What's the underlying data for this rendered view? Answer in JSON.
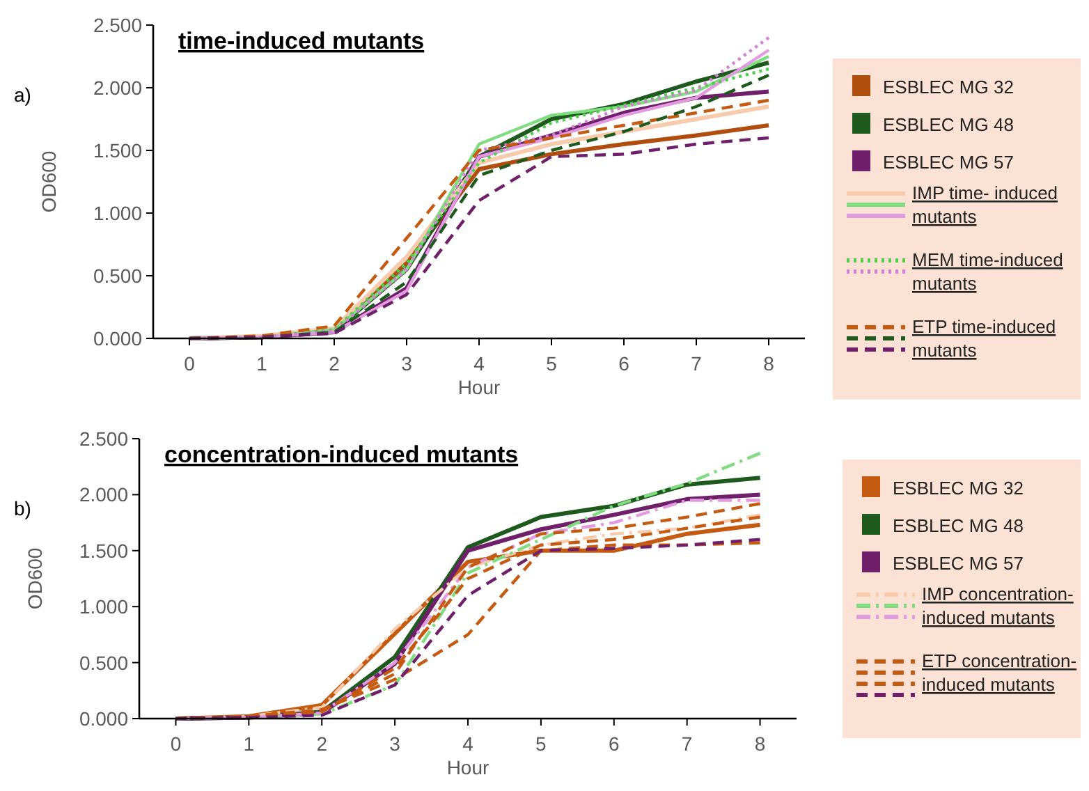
{
  "chart_data": [
    {
      "type": "line",
      "title": "time-induced mutants",
      "xlabel": "Hour",
      "ylabel": "OD600",
      "annotations": [
        "a)"
      ],
      "x": [
        0,
        1,
        2,
        3,
        4,
        5,
        6,
        7,
        8
      ],
      "xlim": [
        -0.5,
        8.5
      ],
      "xticks": [
        0,
        1,
        2,
        3,
        4,
        5,
        6,
        7,
        8
      ],
      "ylim": [
        0,
        2.5
      ],
      "yticks": [
        {
          "value": 0,
          "label": "0.000"
        },
        {
          "value": 0.5,
          "label": "0.500"
        },
        {
          "value": 1,
          "label": "1.000"
        },
        {
          "value": 1.5,
          "label": "1.500"
        },
        {
          "value": 2,
          "label": "2.000"
        },
        {
          "value": 2.5,
          "label": "2.500"
        }
      ],
      "grid": false,
      "legend": "right",
      "series": [
        {
          "name": "ESBLEC MG 32",
          "color": "#b04e10",
          "line_style": "solid",
          "values": [
            0,
            0.01,
            0.07,
            0.6,
            1.35,
            1.47,
            1.55,
            1.62,
            1.7
          ]
        },
        {
          "name": "ESBLEC MG 48",
          "color": "#1e5a1e",
          "line_style": "solid",
          "values": [
            0,
            0.01,
            0.06,
            0.55,
            1.45,
            1.75,
            1.87,
            2.05,
            2.2
          ]
        },
        {
          "name": "ESBLEC MG 57",
          "color": "#70206a",
          "line_style": "solid",
          "values": [
            0,
            0.01,
            0.05,
            0.4,
            1.45,
            1.62,
            1.8,
            1.92,
            1.97
          ]
        },
        {
          "name": "IMP time- induced mutants",
          "color": "#f8cbad",
          "line_style": "solid",
          "values": [
            0,
            0.02,
            0.08,
            0.65,
            1.4,
            1.55,
            1.65,
            1.75,
            1.85
          ]
        },
        {
          "color": "#7fdc7f",
          "line_style": "solid",
          "values": [
            0,
            0.01,
            0.07,
            0.55,
            1.55,
            1.78,
            1.85,
            1.97,
            2.25
          ]
        },
        {
          "color": "#e39be0",
          "line_style": "solid",
          "values": [
            0,
            0.01,
            0.05,
            0.38,
            1.45,
            1.6,
            1.78,
            1.92,
            2.3
          ]
        },
        {
          "name": "MEM time-induced mutants",
          "color": "#4cd04c",
          "line_style": "dotted",
          "values": [
            0,
            0.01,
            0.07,
            0.6,
            1.4,
            1.72,
            1.86,
            2.0,
            2.15
          ]
        },
        {
          "color": "#d77fd4",
          "line_style": "dotted",
          "values": [
            0,
            0.01,
            0.06,
            0.55,
            1.5,
            1.62,
            1.85,
            1.98,
            2.4
          ]
        },
        {
          "name": "ETP time-induced mutants",
          "color": "#c55a11",
          "line_style": "dashed",
          "values": [
            0,
            0.02,
            0.1,
            0.8,
            1.5,
            1.6,
            1.7,
            1.8,
            1.9
          ]
        },
        {
          "color": "#1e5a1e",
          "line_style": "dashed",
          "values": [
            0,
            0.01,
            0.05,
            0.45,
            1.3,
            1.5,
            1.65,
            1.85,
            2.1
          ]
        },
        {
          "color": "#70206a",
          "line_style": "dashed",
          "values": [
            0,
            0.01,
            0.04,
            0.35,
            1.1,
            1.45,
            1.47,
            1.55,
            1.6
          ]
        }
      ]
    },
    {
      "type": "line",
      "title": "concentration-induced mutants",
      "xlabel": "Hour",
      "ylabel": "OD600",
      "annotations": [
        "b)"
      ],
      "x": [
        0,
        1,
        2,
        3,
        4,
        5,
        6,
        7,
        8
      ],
      "xlim": [
        -0.5,
        8.5
      ],
      "xticks": [
        0,
        1,
        2,
        3,
        4,
        5,
        6,
        7,
        8
      ],
      "ylim": [
        0,
        2.5
      ],
      "yticks": [
        {
          "value": 0,
          "label": "0.000"
        },
        {
          "value": 0.5,
          "label": "0.500"
        },
        {
          "value": 1,
          "label": "1.000"
        },
        {
          "value": 1.5,
          "label": "1.500"
        },
        {
          "value": 2,
          "label": "2.000"
        },
        {
          "value": 2.5,
          "label": "2.500"
        }
      ],
      "grid": false,
      "legend": "right",
      "series": [
        {
          "name": "ESBLEC MG 32",
          "color": "#c55a11",
          "line_style": "solid",
          "values": [
            0,
            0.02,
            0.12,
            0.76,
            1.4,
            1.5,
            1.5,
            1.65,
            1.73
          ]
        },
        {
          "name": "ESBLEC MG 48",
          "color": "#1e5a1e",
          "line_style": "solid",
          "values": [
            0,
            0.01,
            0.06,
            0.55,
            1.53,
            1.8,
            1.9,
            2.09,
            2.15
          ]
        },
        {
          "name": "ESBLEC MG 57",
          "color": "#70206a",
          "line_style": "solid",
          "values": [
            0,
            0.01,
            0.05,
            0.49,
            1.5,
            1.69,
            1.82,
            1.96,
            2.0
          ]
        },
        {
          "name": "IMP concentration-induced mutants",
          "color": "#f8cbad",
          "line_style": "dashdot",
          "values": [
            0,
            0.02,
            0.1,
            0.8,
            1.35,
            1.55,
            1.65,
            1.7,
            1.82
          ]
        },
        {
          "color": "#7fdc7f",
          "line_style": "dashdot",
          "values": [
            0,
            0.01,
            0.04,
            0.3,
            1.3,
            1.6,
            1.9,
            2.1,
            2.37
          ]
        },
        {
          "color": "#e39be0",
          "line_style": "dashdot",
          "values": [
            0,
            0.01,
            0.05,
            0.5,
            1.35,
            1.65,
            1.75,
            1.95,
            1.95
          ]
        },
        {
          "name": "ETP concentration-induced mutants",
          "color": "#c55a11",
          "line_style": "dashed",
          "values": [
            0,
            0.02,
            0.08,
            0.35,
            0.75,
            1.5,
            1.55,
            1.55,
            1.57
          ]
        },
        {
          "color": "#c55a11",
          "line_style": "dashed",
          "values": [
            0,
            0.02,
            0.07,
            0.4,
            1.35,
            1.65,
            1.7,
            1.8,
            1.92
          ]
        },
        {
          "color": "#c55a11",
          "line_style": "dashed",
          "values": [
            0,
            0.02,
            0.06,
            0.45,
            1.25,
            1.55,
            1.6,
            1.7,
            1.8
          ]
        },
        {
          "color": "#70206a",
          "line_style": "dashed",
          "values": [
            0,
            0.01,
            0.03,
            0.3,
            1.1,
            1.5,
            1.52,
            1.55,
            1.6
          ]
        }
      ]
    }
  ]
}
